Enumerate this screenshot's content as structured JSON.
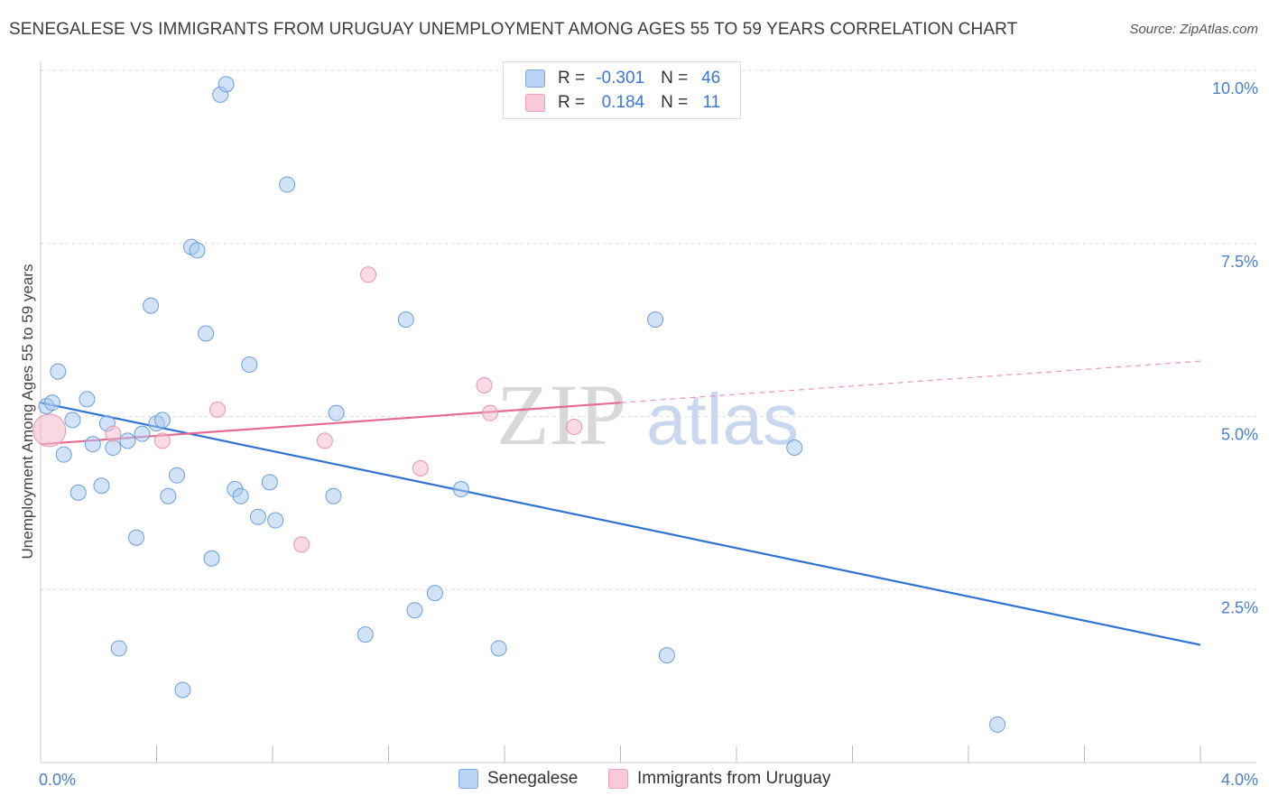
{
  "title": "SENEGALESE VS IMMIGRANTS FROM URUGUAY UNEMPLOYMENT AMONG AGES 55 TO 59 YEARS CORRELATION CHART",
  "source": "Source: ZipAtlas.com",
  "watermark": {
    "zip": "ZIP",
    "atlas": "atlas"
  },
  "legend": {
    "rows": [
      {
        "r_label": "R =",
        "r_value": "-0.301",
        "n_label": "N =",
        "n_value": "46",
        "color": "#a8c8f0"
      },
      {
        "r_label": "R =",
        "r_value": "0.184",
        "n_label": "N =",
        "n_value": "11",
        "color": "#f6b8cb"
      }
    ],
    "bottom": [
      "Senegalese",
      "Immigrants from Uruguay"
    ]
  },
  "chart_data": {
    "type": "scatter",
    "ylabel": "Unemployment Among Ages 55 to 59 years",
    "xlim": [
      0.0,
      4.0
    ],
    "ylim": [
      0.0,
      10.0
    ],
    "x_tick_labels": [
      "0.0%",
      "4.0%"
    ],
    "y_ticks": [
      2.5,
      5.0,
      7.5,
      10.0
    ],
    "y_tick_labels": [
      "2.5%",
      "5.0%",
      "7.5%",
      "10.0%"
    ],
    "grid": true,
    "series": [
      {
        "name": "Senegalese",
        "color": "#a8c8f0",
        "stroke": "#6a9ede",
        "trend_color": "#2f72d3",
        "points": [
          [
            0.02,
            5.15
          ],
          [
            0.04,
            5.2
          ],
          [
            0.06,
            5.65
          ],
          [
            0.08,
            4.45
          ],
          [
            0.11,
            4.95
          ],
          [
            0.13,
            3.9
          ],
          [
            0.16,
            5.25
          ],
          [
            0.18,
            4.6
          ],
          [
            0.21,
            4.0
          ],
          [
            0.23,
            4.9
          ],
          [
            0.25,
            4.55
          ],
          [
            0.27,
            1.65
          ],
          [
            0.3,
            4.65
          ],
          [
            0.33,
            3.25
          ],
          [
            0.35,
            4.75
          ],
          [
            0.38,
            6.6
          ],
          [
            0.4,
            4.9
          ],
          [
            0.42,
            4.95
          ],
          [
            0.44,
            3.85
          ],
          [
            0.47,
            4.15
          ],
          [
            0.49,
            1.05
          ],
          [
            0.52,
            7.45
          ],
          [
            0.54,
            7.4
          ],
          [
            0.57,
            6.2
          ],
          [
            0.59,
            2.95
          ],
          [
            0.62,
            9.65
          ],
          [
            0.64,
            9.8
          ],
          [
            0.67,
            3.95
          ],
          [
            0.69,
            3.85
          ],
          [
            0.72,
            5.75
          ],
          [
            0.75,
            3.55
          ],
          [
            0.79,
            4.05
          ],
          [
            0.81,
            3.5
          ],
          [
            0.85,
            8.35
          ],
          [
            1.01,
            3.85
          ],
          [
            1.02,
            5.05
          ],
          [
            1.12,
            1.85
          ],
          [
            1.26,
            6.4
          ],
          [
            1.29,
            2.2
          ],
          [
            1.36,
            2.45
          ],
          [
            1.45,
            3.95
          ],
          [
            1.58,
            1.65
          ],
          [
            2.12,
            6.4
          ],
          [
            2.16,
            1.55
          ],
          [
            2.6,
            4.55
          ],
          [
            3.3,
            0.55
          ]
        ],
        "trend": {
          "x": [
            0.0,
            4.0
          ],
          "y": [
            5.2,
            1.7
          ]
        }
      },
      {
        "name": "Immigrants from Uruguay",
        "color": "#f6b8cb",
        "stroke": "#e895af",
        "trend_color": "#e56b93",
        "points": [
          [
            0.03,
            4.8
          ],
          [
            0.25,
            4.75
          ],
          [
            0.42,
            4.65
          ],
          [
            0.61,
            5.1
          ],
          [
            0.9,
            3.15
          ],
          [
            0.98,
            4.65
          ],
          [
            1.13,
            7.05
          ],
          [
            1.31,
            4.25
          ],
          [
            1.53,
            5.45
          ],
          [
            1.55,
            5.05
          ],
          [
            1.84,
            4.85
          ]
        ],
        "trend": {
          "x": [
            0.0,
            2.0
          ],
          "y": [
            4.6,
            5.2
          ]
        },
        "trend_extension": {
          "x": [
            2.0,
            4.0
          ],
          "y": [
            5.2,
            5.8
          ]
        }
      }
    ]
  }
}
